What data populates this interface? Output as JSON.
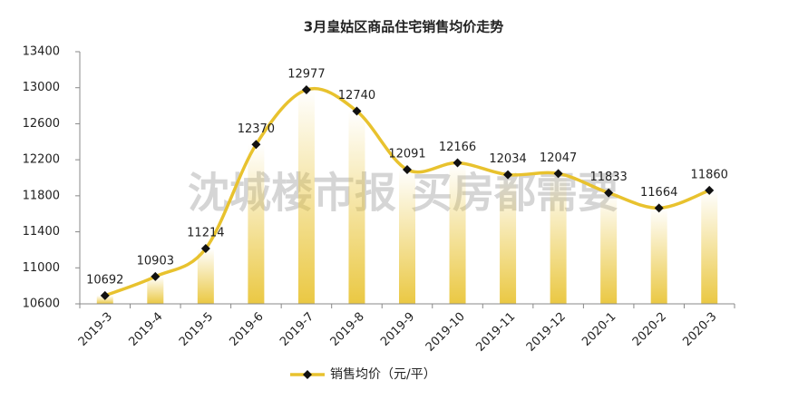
{
  "chart_data": {
    "type": "line",
    "title": "3月皇姑区商品住宅销售均价走势",
    "watermark": "沈城楼市报 买房都需要",
    "categories": [
      "2019-3",
      "2019-4",
      "2019-5",
      "2019-6",
      "2019-7",
      "2019-8",
      "2019-9",
      "2019-10",
      "2019-11",
      "2019-12",
      "2020-1",
      "2020-2",
      "2020-3"
    ],
    "series": [
      {
        "name": "销售均价（元/平）",
        "color": "#e8c22e",
        "values": [
          10692,
          10903,
          11214,
          12370,
          12977,
          12740,
          12091,
          12166,
          12034,
          12047,
          11833,
          11664,
          11860
        ]
      }
    ],
    "ylim": [
      10600,
      13400
    ],
    "yticks": [
      10600,
      11000,
      11400,
      11800,
      12200,
      12600,
      13000,
      13400
    ],
    "grid": false,
    "smooth": true,
    "legend": "bottom"
  }
}
